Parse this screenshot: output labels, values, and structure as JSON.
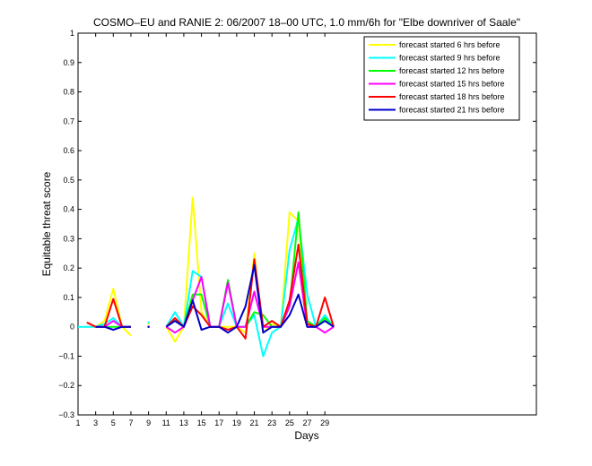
{
  "chart_data": {
    "type": "line",
    "title": "COSMO–EU and RANIE 2: 06/2007 18–00 UTC, 1.0 mm/6h for \"Elbe downriver of Saale\"",
    "xlabel": "Days",
    "ylabel": "Equitable threat score",
    "xlim": [
      1,
      53
    ],
    "ylim": [
      -0.3,
      1
    ],
    "xticks": [
      1,
      3,
      5,
      7,
      9,
      11,
      13,
      15,
      17,
      19,
      21,
      23,
      25,
      27,
      29
    ],
    "yticks": [
      -0.3,
      -0.2,
      -0.1,
      0,
      0.1,
      0.2,
      0.3,
      0.4,
      0.5,
      0.6,
      0.7,
      0.8,
      0.9,
      1
    ],
    "ytick_labels": [
      "−0.3",
      "−0.2",
      "−0.1",
      "0",
      "0.1",
      "0.2",
      "0.3",
      "0.4",
      "0.5",
      "0.6",
      "0.7",
      "0.8",
      "0.9",
      "1"
    ],
    "grid": false,
    "legend_position": "top-right",
    "x": [
      1,
      2,
      3,
      4,
      5,
      6,
      7,
      8,
      9,
      10,
      11,
      12,
      13,
      14,
      15,
      16,
      17,
      18,
      19,
      20,
      21,
      22,
      23,
      24,
      25,
      26,
      27,
      28,
      29,
      30
    ],
    "series": [
      {
        "name": "forecast started 6 hrs before",
        "color": "#ffff00",
        "values": [
          null,
          null,
          0,
          0.02,
          0.13,
          0,
          -0.03,
          null,
          0.01,
          null,
          0,
          -0.05,
          0,
          0.44,
          0.05,
          0,
          0,
          0,
          0,
          -0.02,
          0.25,
          -0.02,
          0.01,
          0,
          0.39,
          0.36,
          0.01,
          0,
          0.02,
          null
        ]
      },
      {
        "name": "forecast started 9 hrs before",
        "color": "#00ffff",
        "values": [
          0,
          0,
          0,
          0.01,
          0.03,
          0,
          0,
          null,
          0.015,
          null,
          0,
          0.05,
          0,
          0.19,
          0.17,
          0,
          0,
          0.08,
          0,
          0,
          0.04,
          -0.1,
          -0.02,
          0,
          0.26,
          0.37,
          0.11,
          0,
          0.04,
          0
        ]
      },
      {
        "name": "forecast started 12 hrs before",
        "color": "#00ff00",
        "values": [
          null,
          null,
          0,
          0,
          0,
          0,
          0,
          null,
          0,
          null,
          0,
          0.02,
          0,
          0.11,
          0.11,
          0,
          0,
          0.16,
          0,
          0,
          0.05,
          0.04,
          0,
          0,
          0.07,
          0.39,
          0.02,
          0,
          0.03,
          0
        ]
      },
      {
        "name": "forecast started 15 hrs before",
        "color": "#ff00ff",
        "values": [
          null,
          null,
          0,
          0,
          0.02,
          0,
          0,
          null,
          0,
          null,
          0,
          -0.02,
          0,
          0.09,
          0.17,
          0,
          0,
          0.15,
          0,
          0,
          0.12,
          0,
          0,
          0,
          0.07,
          0.22,
          0,
          0,
          -0.02,
          0
        ]
      },
      {
        "name": "forecast started 18 hrs before",
        "color": "#ff0000",
        "values": [
          null,
          0.015,
          0,
          0,
          0.095,
          0,
          0,
          null,
          0,
          null,
          0,
          0.03,
          0,
          0.07,
          0.04,
          0,
          0,
          -0.01,
          0,
          -0.04,
          0.23,
          0,
          0.02,
          0,
          0.09,
          0.28,
          0.01,
          0,
          0.1,
          0
        ]
      },
      {
        "name": "forecast started 21 hrs before",
        "color": "#0000cc",
        "values": [
          null,
          null,
          0,
          0,
          -0.01,
          0,
          0,
          null,
          0,
          null,
          0,
          0.02,
          0,
          0.09,
          -0.01,
          0,
          0,
          -0.02,
          0,
          0.07,
          0.21,
          -0.02,
          0,
          0,
          0.04,
          0.11,
          0,
          0,
          0.02,
          0
        ]
      }
    ]
  }
}
